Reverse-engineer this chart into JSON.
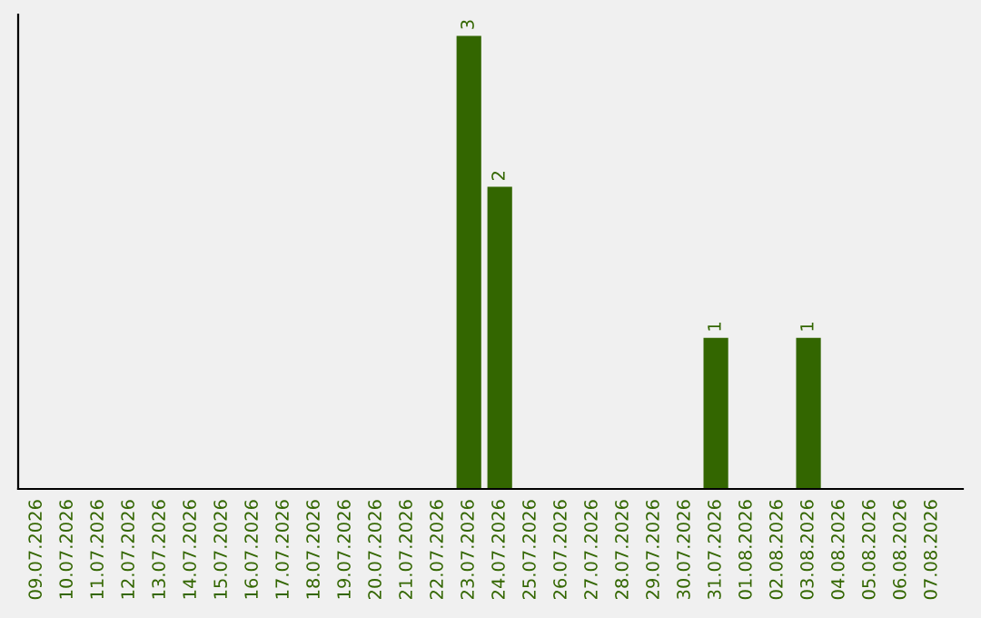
{
  "chart_data": {
    "type": "bar",
    "categories": [
      "09.07.2026",
      "10.07.2026",
      "11.07.2026",
      "12.07.2026",
      "13.07.2026",
      "14.07.2026",
      "15.07.2026",
      "16.07.2026",
      "17.07.2026",
      "18.07.2026",
      "19.07.2026",
      "20.07.2026",
      "21.07.2026",
      "22.07.2026",
      "23.07.2026",
      "24.07.2026",
      "25.07.2026",
      "26.07.2026",
      "27.07.2026",
      "28.07.2026",
      "29.07.2026",
      "30.07.2026",
      "31.07.2026",
      "01.08.2026",
      "02.08.2026",
      "03.08.2026",
      "04.08.2026",
      "05.08.2026",
      "06.08.2026",
      "07.08.2026"
    ],
    "values": [
      null,
      null,
      null,
      null,
      null,
      null,
      null,
      null,
      null,
      null,
      null,
      null,
      null,
      null,
      3,
      2,
      null,
      null,
      null,
      null,
      null,
      null,
      1,
      null,
      null,
      1,
      null,
      null,
      null,
      null
    ],
    "data_labels": true,
    "color": "#336600",
    "tick_labels": "x"
  }
}
